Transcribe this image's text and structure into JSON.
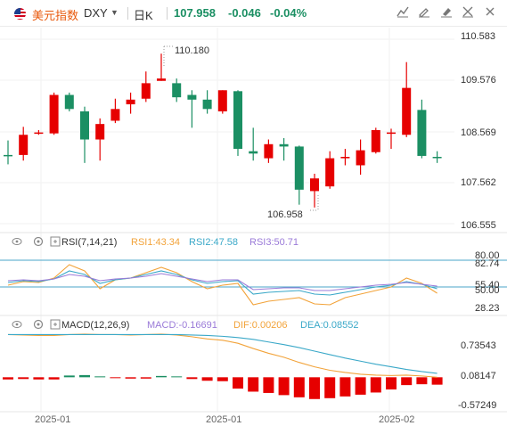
{
  "header": {
    "symbol_name": "美元指数",
    "symbol_code": "DXY",
    "period": "日K",
    "price": "107.958",
    "change": "-0.046",
    "change_pct": "-0.04%"
  },
  "toolbar": {
    "icons": [
      "line-tool-icon",
      "draw-tool-icon",
      "marker-tool-icon",
      "fullscreen-icon",
      "close-icon"
    ]
  },
  "colors": {
    "up": "#e60000",
    "down": "#1b8f63",
    "rsi1": "#f2a33a",
    "rsi2": "#3aa8c8",
    "rsi3": "#9a7ad8",
    "dif": "#f2a33a",
    "dea": "#3aa8c8",
    "macd_label": "#9a7ad8",
    "price_axis": "#e60000",
    "price_axis_low": "#1b8f63"
  },
  "chart_data": {
    "type": "candlestick",
    "price_axis": {
      "range": [
        106.555,
        110.583
      ],
      "ticks": [
        "110.583",
        "109.576",
        "108.569",
        "107.562",
        "106.555"
      ]
    },
    "annotations": {
      "high": "110.180",
      "low": "106.958"
    },
    "date_labels": [
      "2025-01",
      "2025-01",
      "2025-02"
    ],
    "candles": [
      {
        "o": 108.02,
        "h": 108.33,
        "l": 107.82,
        "c": 108.0
      },
      {
        "o": 108.02,
        "h": 108.62,
        "l": 107.9,
        "c": 108.45
      },
      {
        "o": 108.5,
        "h": 108.55,
        "l": 108.45,
        "c": 108.5
      },
      {
        "o": 108.48,
        "h": 109.35,
        "l": 108.45,
        "c": 109.3
      },
      {
        "o": 109.3,
        "h": 109.35,
        "l": 108.95,
        "c": 109.0
      },
      {
        "o": 108.95,
        "h": 109.05,
        "l": 107.85,
        "c": 108.35
      },
      {
        "o": 108.35,
        "h": 108.8,
        "l": 107.9,
        "c": 108.68
      },
      {
        "o": 108.75,
        "h": 109.22,
        "l": 108.7,
        "c": 109.0
      },
      {
        "o": 109.1,
        "h": 109.35,
        "l": 108.9,
        "c": 109.2
      },
      {
        "o": 109.22,
        "h": 109.8,
        "l": 109.15,
        "c": 109.55
      },
      {
        "o": 109.6,
        "h": 110.18,
        "l": 109.6,
        "c": 109.65
      },
      {
        "o": 109.55,
        "h": 109.65,
        "l": 109.15,
        "c": 109.25
      },
      {
        "o": 109.3,
        "h": 109.4,
        "l": 108.6,
        "c": 109.2
      },
      {
        "o": 109.2,
        "h": 109.4,
        "l": 108.9,
        "c": 109.0
      },
      {
        "o": 108.95,
        "h": 109.4,
        "l": 108.9,
        "c": 109.4
      },
      {
        "o": 109.38,
        "h": 109.4,
        "l": 108.0,
        "c": 108.15
      },
      {
        "o": 108.1,
        "h": 108.6,
        "l": 107.9,
        "c": 108.05
      },
      {
        "o": 107.95,
        "h": 108.35,
        "l": 107.85,
        "c": 108.25
      },
      {
        "o": 108.25,
        "h": 108.38,
        "l": 107.9,
        "c": 108.2
      },
      {
        "o": 108.2,
        "h": 108.22,
        "l": 106.96,
        "c": 107.28
      },
      {
        "o": 107.25,
        "h": 107.62,
        "l": 106.9,
        "c": 107.52
      },
      {
        "o": 107.35,
        "h": 108.1,
        "l": 107.3,
        "c": 107.95
      },
      {
        "o": 107.95,
        "h": 108.15,
        "l": 107.8,
        "c": 107.98
      },
      {
        "o": 107.8,
        "h": 108.35,
        "l": 107.6,
        "c": 108.12
      },
      {
        "o": 108.08,
        "h": 108.6,
        "l": 108.05,
        "c": 108.55
      },
      {
        "o": 108.5,
        "h": 108.58,
        "l": 108.15,
        "c": 108.5
      },
      {
        "o": 108.45,
        "h": 110.0,
        "l": 108.4,
        "c": 109.45
      },
      {
        "o": 108.98,
        "h": 109.2,
        "l": 107.95,
        "c": 108.0
      },
      {
        "o": 107.98,
        "h": 108.1,
        "l": 107.85,
        "c": 107.96
      }
    ],
    "rsi": {
      "title": "RSI(7,14,21)",
      "labels": [
        "RSI1:43.34",
        "RSI2:47.58",
        "RSI3:50.71"
      ],
      "axis": [
        "80.00",
        "82.74",
        "55.40",
        "50.00",
        "28.23"
      ],
      "range": [
        20,
        92
      ],
      "levels": [
        80,
        50
      ],
      "rsi1": [
        52,
        56,
        55,
        60,
        75,
        68,
        48,
        58,
        60,
        66,
        72,
        66,
        56,
        48,
        52,
        54,
        30,
        34,
        36,
        38,
        31,
        30,
        38,
        42,
        46,
        50,
        60,
        54,
        43
      ],
      "rsi2": [
        55,
        57,
        56,
        59,
        68,
        64,
        54,
        58,
        60,
        64,
        68,
        64,
        58,
        54,
        56,
        57,
        42,
        44,
        45,
        46,
        42,
        41,
        44,
        47,
        50,
        52,
        56,
        53,
        48
      ],
      "rsi3": [
        57,
        58,
        57,
        59,
        64,
        62,
        57,
        59,
        60,
        62,
        65,
        62,
        59,
        56,
        58,
        58,
        47,
        48,
        49,
        49,
        46,
        46,
        48,
        50,
        52,
        53,
        55,
        53,
        51
      ]
    },
    "macd": {
      "title": "MACD(12,26,9)",
      "labels": [
        "MACD:-0.16691",
        "DIF:0.00206",
        "DEA:0.08552"
      ],
      "axis": [
        "0.73543",
        "0.08147",
        "-0.57249"
      ],
      "range": [
        -0.75,
        1.05
      ],
      "dif": [
        0.98,
        0.97,
        0.96,
        0.96,
        0.98,
        0.99,
        0.98,
        0.98,
        0.97,
        0.98,
        0.99,
        0.97,
        0.93,
        0.88,
        0.85,
        0.78,
        0.66,
        0.55,
        0.46,
        0.34,
        0.24,
        0.16,
        0.11,
        0.07,
        0.05,
        0.04,
        0.05,
        0.03,
        0.0
      ],
      "dea": [
        0.98,
        0.98,
        0.98,
        0.98,
        0.98,
        0.98,
        0.98,
        0.98,
        0.98,
        0.98,
        0.98,
        0.98,
        0.97,
        0.96,
        0.94,
        0.91,
        0.87,
        0.81,
        0.75,
        0.68,
        0.6,
        0.52,
        0.44,
        0.37,
        0.3,
        0.24,
        0.18,
        0.13,
        0.09
      ],
      "hist": [
        -0.05,
        -0.04,
        -0.05,
        -0.05,
        0.04,
        0.05,
        0.02,
        -0.02,
        -0.03,
        -0.03,
        0.03,
        0.02,
        -0.04,
        -0.08,
        -0.09,
        -0.26,
        -0.33,
        -0.36,
        -0.41,
        -0.46,
        -0.5,
        -0.48,
        -0.44,
        -0.4,
        -0.35,
        -0.28,
        -0.18,
        -0.16,
        -0.17
      ]
    }
  }
}
